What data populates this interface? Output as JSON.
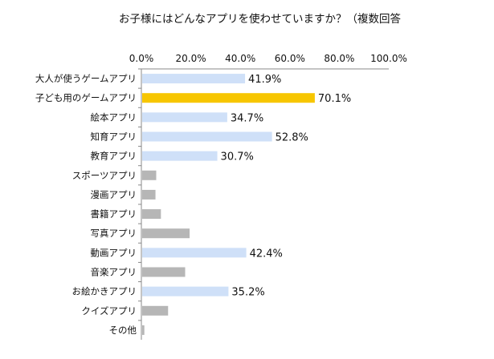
{
  "chart_data": {
    "type": "bar",
    "orientation": "horizontal",
    "title": "お子様にはどんなアプリを使わせていますか？（複数回答",
    "xlim": [
      0,
      100
    ],
    "xticks": [
      "0.0%",
      "20.0%",
      "40.0%",
      "60.0%",
      "80.0%",
      "100.0%"
    ],
    "tick_values": [
      0,
      20,
      40,
      60,
      80,
      100
    ],
    "categories": [
      "大人が使うゲームアプリ",
      "子ども用のゲームアプリ",
      "絵本アプリ",
      "知育アプリ",
      "教育アプリ",
      "スポーツアプリ",
      "漫画アプリ",
      "書籍アプリ",
      "写真アプリ",
      "動画アプリ",
      "音楽アプリ",
      "お絵かきアプリ",
      "クイズアプリ",
      "その他"
    ],
    "values": [
      41.9,
      70.1,
      34.7,
      52.8,
      30.7,
      6.0,
      5.7,
      7.9,
      19.5,
      42.4,
      17.7,
      35.2,
      10.8,
      1.2
    ],
    "data_labels": [
      "41.9%",
      "70.1%",
      "34.7%",
      "52.8%",
      "30.7%",
      "",
      "",
      "",
      "",
      "42.4%",
      "",
      "35.2%",
      "",
      ""
    ],
    "colors": {
      "highlight": "#f7c600",
      "labeled": "#cfe0f8",
      "unlabeled": "#b6b6b6",
      "axis": "#888888"
    },
    "highlight_index": 1,
    "grid": false,
    "legend": "none"
  }
}
